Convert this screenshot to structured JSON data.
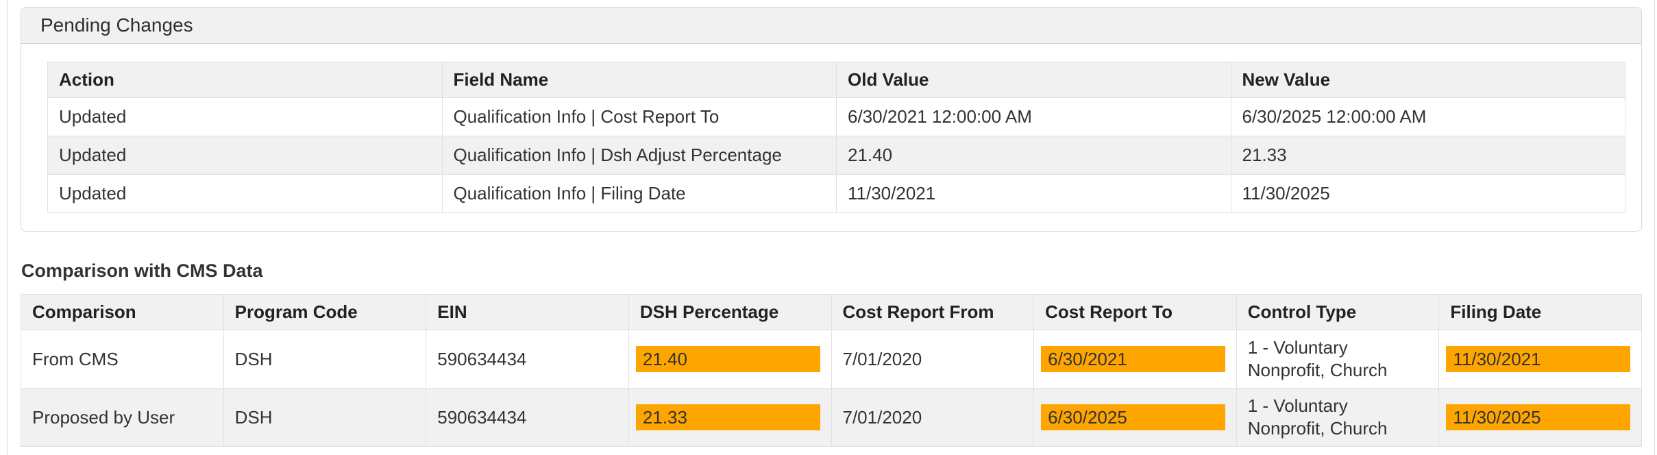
{
  "pending_changes": {
    "title": "Pending Changes",
    "columns": [
      "Action",
      "Field Name",
      "Old Value",
      "New Value"
    ],
    "rows": [
      {
        "cells": [
          "Updated",
          "Qualification Info | Cost Report To",
          "6/30/2021 12:00:00 AM",
          "6/30/2025 12:00:00 AM"
        ],
        "highlighted": []
      },
      {
        "cells": [
          "Updated",
          "Qualification Info | Dsh Adjust Percentage",
          "21.40",
          "21.33"
        ],
        "highlighted": []
      },
      {
        "cells": [
          "Updated",
          "Qualification Info | Filing Date",
          "11/30/2021",
          "11/30/2025"
        ],
        "highlighted": []
      }
    ]
  },
  "comparison": {
    "title": "Comparison with CMS Data",
    "columns": [
      "Comparison",
      "Program Code",
      "EIN",
      "DSH Percentage",
      "Cost Report From",
      "Cost Report To",
      "Control Type",
      "Filing Date"
    ],
    "rows": [
      {
        "cells": [
          "From CMS",
          "DSH",
          "590634434",
          "21.40",
          "7/01/2020",
          "6/30/2021",
          "1 - Voluntary Nonprofit, Church",
          "11/30/2021"
        ],
        "highlighted": [
          3,
          5,
          7
        ]
      },
      {
        "cells": [
          "Proposed by User",
          "DSH",
          "590634434",
          "21.33",
          "7/01/2020",
          "6/30/2025",
          "1 - Voluntary Nonprofit, Church",
          "11/30/2025"
        ],
        "highlighted": [
          3,
          5,
          7
        ]
      }
    ],
    "highlight_color": "#ffa500"
  }
}
